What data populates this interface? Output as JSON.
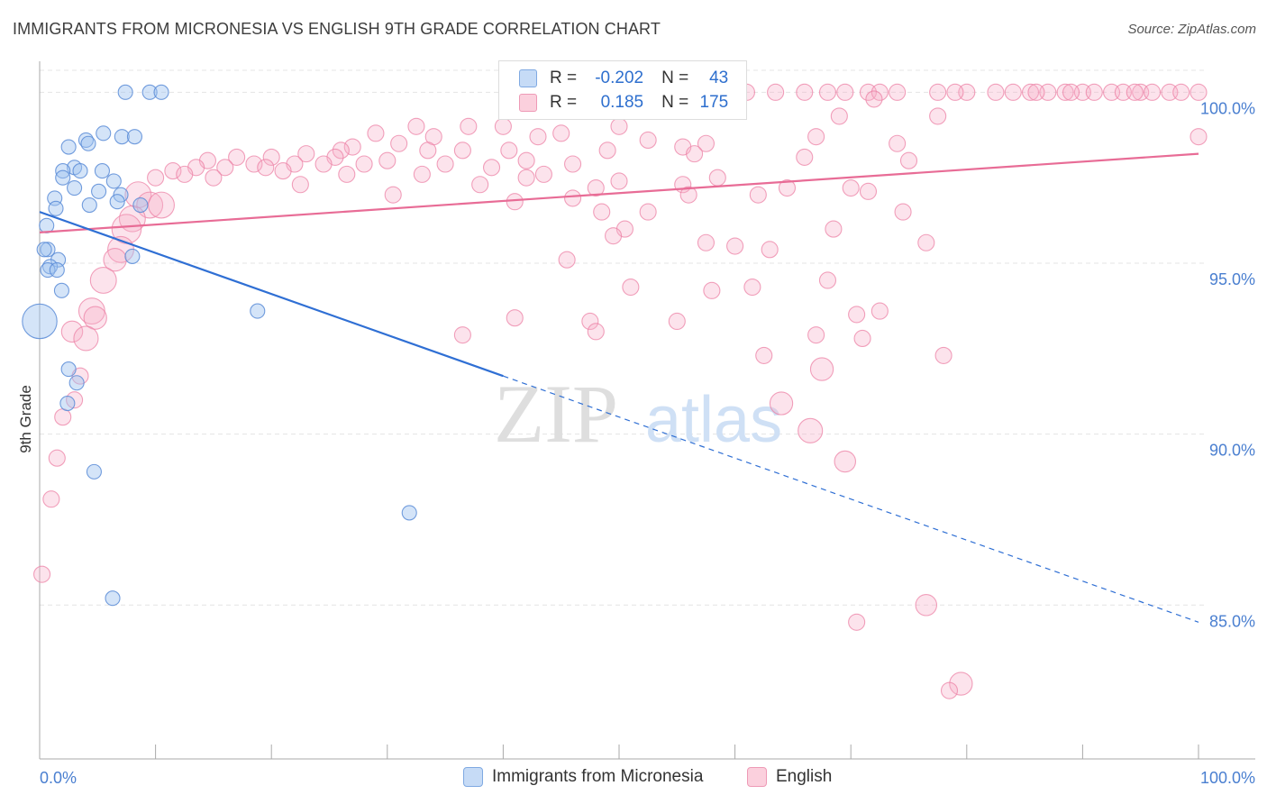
{
  "header": {
    "title": "IMMIGRANTS FROM MICRONESIA VS ENGLISH 9TH GRADE CORRELATION CHART",
    "source": "Source: ZipAtlas.com"
  },
  "watermark": {
    "zip": "ZIP",
    "atlas": "atlas"
  },
  "legend": {
    "rows": [
      {
        "r_label": "R =",
        "r_value": "-0.202",
        "n_label": "N =",
        "n_value": "43",
        "color": "#a9c8f0"
      },
      {
        "r_label": "R =",
        "r_value": "0.185",
        "n_label": "N =",
        "n_value": "175",
        "color": "#f7b8cc"
      }
    ]
  },
  "bottom_legend": {
    "items": [
      {
        "label": "Immigrants from Micronesia",
        "color": "#a9c8f0"
      },
      {
        "label": "English",
        "color": "#f7b8cc"
      }
    ]
  },
  "chart_data": {
    "type": "scatter",
    "title": "IMMIGRANTS FROM MICRONESIA VS ENGLISH 9TH GRADE CORRELATION CHART",
    "xlabel": "",
    "ylabel": "9th Grade",
    "xlim": [
      0,
      100
    ],
    "ylim": [
      80.5,
      100.8
    ],
    "x_tick_labels": [
      "0.0%",
      "100.0%"
    ],
    "y_ticks": [
      85,
      90,
      95,
      100
    ],
    "y_tick_labels": [
      "85.0%",
      "90.0%",
      "95.0%",
      "100.0%"
    ],
    "grid": true,
    "legend_position": "top-center",
    "colors": {
      "micronesia": "#6fa1e3",
      "english": "#f08db0",
      "micronesia_line": "#2f6fd4",
      "english_line": "#e86c96"
    },
    "series": [
      {
        "name": "Immigrants from Micronesia",
        "r": -0.202,
        "n": 43,
        "trend": {
          "x0": 0,
          "y0": 96.5,
          "x1": 100,
          "y1": 84.5,
          "solid_until": 40
        },
        "points": [
          [
            7.4,
            100.0
          ],
          [
            9.5,
            100.0
          ],
          [
            10.5,
            100.0
          ],
          [
            5.5,
            98.8
          ],
          [
            7.1,
            98.7
          ],
          [
            8.2,
            98.7
          ],
          [
            4.0,
            98.6
          ],
          [
            4.2,
            98.5
          ],
          [
            2.5,
            98.4
          ],
          [
            3.0,
            97.8
          ],
          [
            2.0,
            97.7
          ],
          [
            3.5,
            97.7
          ],
          [
            5.4,
            97.7
          ],
          [
            2.0,
            97.5
          ],
          [
            6.4,
            97.4
          ],
          [
            3.0,
            97.2
          ],
          [
            5.1,
            97.1
          ],
          [
            1.3,
            96.9
          ],
          [
            7.0,
            97.0
          ],
          [
            6.7,
            96.8
          ],
          [
            4.3,
            96.7
          ],
          [
            1.4,
            96.6
          ],
          [
            8.7,
            96.7
          ],
          [
            0.6,
            96.1
          ],
          [
            0.7,
            95.4
          ],
          [
            0.4,
            95.4
          ],
          [
            1.6,
            95.1
          ],
          [
            8.0,
            95.2
          ],
          [
            0.9,
            94.9
          ],
          [
            0.7,
            94.8
          ],
          [
            1.5,
            94.8
          ],
          [
            1.9,
            94.2
          ],
          [
            18.8,
            93.6
          ],
          [
            0.0,
            93.3
          ],
          [
            2.5,
            91.9
          ],
          [
            3.2,
            91.5
          ],
          [
            2.4,
            90.9
          ],
          [
            4.7,
            88.9
          ],
          [
            31.9,
            87.7
          ],
          [
            6.3,
            85.2
          ]
        ],
        "point_sizes": [
          1,
          1,
          1,
          1,
          1,
          1,
          1,
          1,
          1,
          1,
          1,
          1,
          1,
          1,
          1,
          1,
          1,
          1,
          1,
          1,
          1,
          1,
          1,
          1,
          1,
          1,
          1,
          1,
          1,
          1,
          1,
          1,
          1,
          2.4,
          1,
          1,
          1,
          1,
          1,
          1
        ]
      },
      {
        "name": "English",
        "r": 0.185,
        "n": 175,
        "trend": {
          "x0": 0,
          "y0": 95.9,
          "x1": 100,
          "y1": 98.2
        },
        "points": [
          [
            61.0,
            100.0
          ],
          [
            66.0,
            100.0
          ],
          [
            68.0,
            100.0
          ],
          [
            71.5,
            100.0
          ],
          [
            74.0,
            100.0
          ],
          [
            77.5,
            100.0
          ],
          [
            80.0,
            100.0
          ],
          [
            84.0,
            100.0
          ],
          [
            87.0,
            100.0
          ],
          [
            90.0,
            100.0
          ],
          [
            92.5,
            100.0
          ],
          [
            95.0,
            100.0
          ],
          [
            97.5,
            100.0
          ],
          [
            100.0,
            100.0
          ],
          [
            58.0,
            100.0
          ],
          [
            63.5,
            100.0
          ],
          [
            69.5,
            100.0
          ],
          [
            72.5,
            100.0
          ],
          [
            79.0,
            100.0
          ],
          [
            82.5,
            100.0
          ],
          [
            85.5,
            100.0
          ],
          [
            88.5,
            100.0
          ],
          [
            91.0,
            100.0
          ],
          [
            93.5,
            100.0
          ],
          [
            96.0,
            100.0
          ],
          [
            98.5,
            100.0
          ],
          [
            86.0,
            100.0
          ],
          [
            89.0,
            100.0
          ],
          [
            94.5,
            100.0
          ],
          [
            59.5,
            99.8
          ],
          [
            72.0,
            99.8
          ],
          [
            47.5,
            99.7
          ],
          [
            69.0,
            99.3
          ],
          [
            77.5,
            99.3
          ],
          [
            32.5,
            99.0
          ],
          [
            37.0,
            99.0
          ],
          [
            40.0,
            99.0
          ],
          [
            50.0,
            99.0
          ],
          [
            45.0,
            98.8
          ],
          [
            29.0,
            98.8
          ],
          [
            34.0,
            98.7
          ],
          [
            52.5,
            98.6
          ],
          [
            67.0,
            98.7
          ],
          [
            43.0,
            98.7
          ],
          [
            57.5,
            98.5
          ],
          [
            55.5,
            98.4
          ],
          [
            31.0,
            98.5
          ],
          [
            27.0,
            98.4
          ],
          [
            74.0,
            98.5
          ],
          [
            100.0,
            98.7
          ],
          [
            26.0,
            98.3
          ],
          [
            33.5,
            98.3
          ],
          [
            36.5,
            98.3
          ],
          [
            40.5,
            98.3
          ],
          [
            49.0,
            98.3
          ],
          [
            56.5,
            98.2
          ],
          [
            23.0,
            98.2
          ],
          [
            25.5,
            98.1
          ],
          [
            20.0,
            98.1
          ],
          [
            17.0,
            98.1
          ],
          [
            66.0,
            98.1
          ],
          [
            75.0,
            98.0
          ],
          [
            30.0,
            98.0
          ],
          [
            42.0,
            98.0
          ],
          [
            14.5,
            98.0
          ],
          [
            22.0,
            97.9
          ],
          [
            18.5,
            97.9
          ],
          [
            24.5,
            97.9
          ],
          [
            28.0,
            97.9
          ],
          [
            35.0,
            97.9
          ],
          [
            39.0,
            97.8
          ],
          [
            46.0,
            97.9
          ],
          [
            16.0,
            97.8
          ],
          [
            19.5,
            97.8
          ],
          [
            13.5,
            97.8
          ],
          [
            21.0,
            97.7
          ],
          [
            11.5,
            97.7
          ],
          [
            26.5,
            97.6
          ],
          [
            33.0,
            97.6
          ],
          [
            43.5,
            97.6
          ],
          [
            12.5,
            97.6
          ],
          [
            15.0,
            97.5
          ],
          [
            10.0,
            97.5
          ],
          [
            42.0,
            97.5
          ],
          [
            50.0,
            97.4
          ],
          [
            58.5,
            97.5
          ],
          [
            55.5,
            97.3
          ],
          [
            22.5,
            97.3
          ],
          [
            38.0,
            97.3
          ],
          [
            64.5,
            97.2
          ],
          [
            48.0,
            97.2
          ],
          [
            70.0,
            97.2
          ],
          [
            71.5,
            97.1
          ],
          [
            56.0,
            97.0
          ],
          [
            62.0,
            97.0
          ],
          [
            8.5,
            97.0
          ],
          [
            30.5,
            97.0
          ],
          [
            46.0,
            96.9
          ],
          [
            41.0,
            96.8
          ],
          [
            9.5,
            96.7
          ],
          [
            10.5,
            96.7
          ],
          [
            48.5,
            96.5
          ],
          [
            52.5,
            96.5
          ],
          [
            74.5,
            96.5
          ],
          [
            8.0,
            96.3
          ],
          [
            7.5,
            96.0
          ],
          [
            50.5,
            96.0
          ],
          [
            68.5,
            96.0
          ],
          [
            49.5,
            95.8
          ],
          [
            57.5,
            95.6
          ],
          [
            60.0,
            95.5
          ],
          [
            63.0,
            95.4
          ],
          [
            76.5,
            95.6
          ],
          [
            7.0,
            95.4
          ],
          [
            6.5,
            95.1
          ],
          [
            45.5,
            95.1
          ],
          [
            5.5,
            94.5
          ],
          [
            68.0,
            94.5
          ],
          [
            51.0,
            94.3
          ],
          [
            58.0,
            94.2
          ],
          [
            61.5,
            94.3
          ],
          [
            4.5,
            93.6
          ],
          [
            4.8,
            93.4
          ],
          [
            72.5,
            93.6
          ],
          [
            70.5,
            93.5
          ],
          [
            41.0,
            93.4
          ],
          [
            55.0,
            93.3
          ],
          [
            47.5,
            93.3
          ],
          [
            48.0,
            93.0
          ],
          [
            2.8,
            93.0
          ],
          [
            67.0,
            92.9
          ],
          [
            4.0,
            92.8
          ],
          [
            71.0,
            92.8
          ],
          [
            62.5,
            92.3
          ],
          [
            78.0,
            92.3
          ],
          [
            36.5,
            92.9
          ],
          [
            3.5,
            91.7
          ],
          [
            67.5,
            91.9
          ],
          [
            3.0,
            91.0
          ],
          [
            64.0,
            90.9
          ],
          [
            2.0,
            90.5
          ],
          [
            66.5,
            90.1
          ],
          [
            1.5,
            89.3
          ],
          [
            69.5,
            89.2
          ],
          [
            1.0,
            88.1
          ],
          [
            76.5,
            85.0
          ],
          [
            70.5,
            84.5
          ],
          [
            0.2,
            85.9
          ],
          [
            79.5,
            82.7
          ],
          [
            78.5,
            82.5
          ]
        ],
        "point_sizes": [
          1,
          1,
          1,
          1,
          1,
          1,
          1,
          1,
          1,
          1,
          1,
          1,
          1,
          1,
          1,
          1,
          1,
          1,
          1,
          1,
          1,
          1,
          1,
          1,
          1,
          1,
          1,
          1,
          1,
          1,
          1,
          1,
          1,
          1,
          1,
          1,
          1,
          1,
          1,
          1,
          1,
          1,
          1,
          1,
          1,
          1,
          1,
          1,
          1,
          1,
          1,
          1,
          1,
          1,
          1,
          1,
          1,
          1,
          1,
          1,
          1,
          1,
          1,
          1,
          1,
          1,
          1,
          1,
          1,
          1,
          1,
          1,
          1,
          1,
          1,
          1,
          1,
          1,
          1,
          1,
          1,
          1,
          1,
          1,
          1,
          1,
          1,
          1,
          1,
          1,
          1,
          1,
          1,
          1,
          1,
          1.6,
          1,
          1,
          1,
          1.6,
          1.6,
          1,
          1,
          1,
          1.6,
          1.8,
          1,
          1,
          1,
          1,
          1,
          1,
          1,
          1.6,
          1.4,
          1,
          1.6,
          1,
          1,
          1,
          1,
          1.6,
          1.4,
          1,
          1,
          1,
          1,
          1,
          1,
          1.3,
          1,
          1.5,
          1,
          1,
          1,
          1,
          1,
          1.4,
          1,
          1.4,
          1,
          1.5,
          1,
          1.3,
          1,
          1.3,
          1,
          1,
          1.4,
          1,
          1,
          1
        ]
      }
    ]
  }
}
